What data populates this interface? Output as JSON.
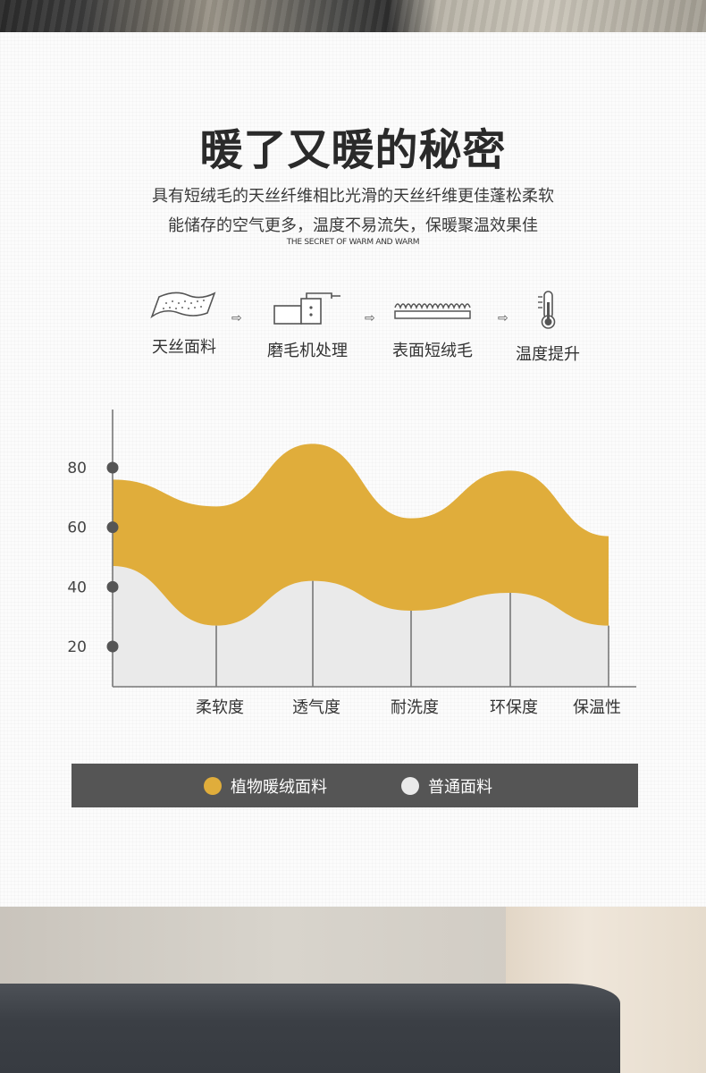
{
  "header": {
    "title": "暖了又暖的秘密",
    "desc_line1": "具有短绒毛的天丝纤维相比光滑的天丝纤维更佳蓬松柔软",
    "desc_line2": "能储存的空气更多，温度不易流失，保暖聚温效果佳",
    "subtitle": "THE SECRET OF WARM AND WARM"
  },
  "process": {
    "steps": [
      {
        "label": "天丝面料",
        "icon": "fabric-swatch-icon"
      },
      {
        "label": "磨毛机处理",
        "icon": "brushing-machine-icon"
      },
      {
        "label": "表面短绒毛",
        "icon": "short-fleece-icon"
      },
      {
        "label": "温度提升",
        "icon": "thermometer-icon"
      }
    ],
    "arrow_glyph": "⇨"
  },
  "chart_data": {
    "type": "area",
    "categories": [
      "柔软度",
      "透气度",
      "耐洗度",
      "环保度",
      "保温性"
    ],
    "yticks": [
      20,
      40,
      60,
      80
    ],
    "ylim": [
      6,
      100
    ],
    "series": [
      {
        "name": "植物暖绒面料",
        "color": "#e0ad3b",
        "start": 76,
        "values": [
          67,
          88,
          63,
          79,
          57
        ]
      },
      {
        "name": "普通面料",
        "color": "#eaeaea",
        "start": 47,
        "values": [
          27,
          42,
          32,
          38,
          27
        ]
      }
    ],
    "legend": [
      {
        "label": "植物暖绒面料",
        "color": "#e0ad3b"
      },
      {
        "label": "普通面料",
        "color": "#eaeaea"
      }
    ]
  }
}
